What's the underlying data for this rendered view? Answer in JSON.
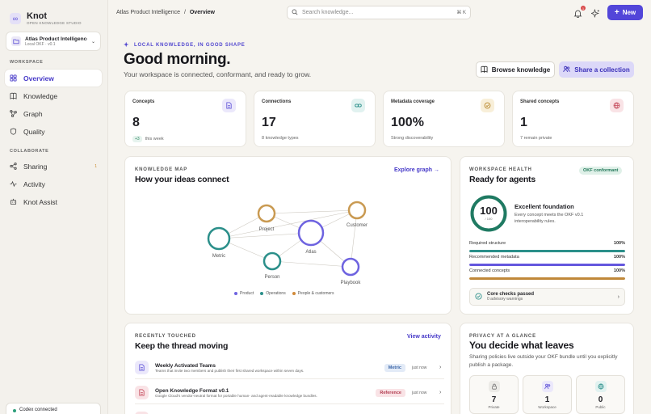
{
  "app": {
    "name": "Knot",
    "tagline": "OPEN KNOWLEDGE STUDIO"
  },
  "workspace": {
    "name": "Atlas Product Intelligence",
    "meta": "Local OKF · v0.1"
  },
  "sidebar": {
    "workspace_label": "WORKSPACE",
    "collaborate_label": "COLLABORATE",
    "items": [
      {
        "label": "Overview",
        "icon": "grid-icon"
      },
      {
        "label": "Knowledge",
        "icon": "book-icon"
      },
      {
        "label": "Graph",
        "icon": "graph-icon"
      },
      {
        "label": "Quality",
        "icon": "shield-icon"
      },
      {
        "label": "Sharing",
        "icon": "share-icon",
        "badge": "1"
      },
      {
        "label": "Activity",
        "icon": "pulse-icon"
      },
      {
        "label": "Knot Assist",
        "icon": "bot-icon"
      }
    ],
    "status": "Codex connected"
  },
  "topbar": {
    "breadcrumb_root": "Atlas Product Intelligence",
    "breadcrumb_sep": "/",
    "breadcrumb_current": "Overview",
    "search_placeholder": "Search knowledge...",
    "search_shortcut": "⌘ K",
    "notification_count": "1",
    "new_label": "New"
  },
  "hero": {
    "eyebrow": "LOCAL KNOWLEDGE, IN GOOD SHAPE",
    "title": "Good morning.",
    "subtitle": "Your workspace is connected, conformant, and ready to grow.",
    "browse_label": "Browse knowledge",
    "share_label": "Share a collection"
  },
  "stats": [
    {
      "label": "Concepts",
      "value": "8",
      "delta": "+3",
      "foot": "this week",
      "color": "#5b4fd6",
      "bg": "#ebe8fb"
    },
    {
      "label": "Connections",
      "value": "17",
      "foot": "8 knowledge types",
      "color": "#2b8f8a",
      "bg": "#e1f2f0"
    },
    {
      "label": "Metadata coverage",
      "value": "100%",
      "foot": "Strong discoverability",
      "color": "#b7862a",
      "bg": "#f8efd9"
    },
    {
      "label": "Shared concepts",
      "value": "1",
      "foot": "7 remain private",
      "color": "#c4485a",
      "bg": "#f9e3e6"
    }
  ],
  "knowledge_map": {
    "eyebrow": "KNOWLEDGE MAP",
    "title": "How your ideas connect",
    "link": "Explore graph",
    "nodes": [
      {
        "label": "Metric",
        "color": "#2b8f8a"
      },
      {
        "label": "Project",
        "color": "#c99a52"
      },
      {
        "label": "Atlas",
        "color": "#6e63e0"
      },
      {
        "label": "Customer",
        "color": "#c99a52"
      },
      {
        "label": "Person",
        "color": "#2b8f8a"
      },
      {
        "label": "Playbook",
        "color": "#6e63e0"
      }
    ],
    "legend": [
      {
        "label": "Product",
        "color": "#6e63e0"
      },
      {
        "label": "Operations",
        "color": "#2b8f8a"
      },
      {
        "label": "People & customers",
        "color": "#d08a3a"
      }
    ]
  },
  "health": {
    "eyebrow": "WORKSPACE HEALTH",
    "title": "Ready for agents",
    "badge": "OKF conformant",
    "score": "100",
    "score_sub": "/ 100",
    "score_fraction": 1.0,
    "summary_title": "Excellent foundation",
    "summary_text": "Every concept meets the OKF v0.1 interoperability rules.",
    "bars": [
      {
        "label": "Required structure",
        "value": "100%",
        "fraction": 1.0,
        "color": "#2b8f8a"
      },
      {
        "label": "Recommended metadata",
        "value": "100%",
        "fraction": 1.0,
        "color": "#6457de"
      },
      {
        "label": "Connected concepts",
        "value": "100%",
        "fraction": 1.0,
        "color": "#c0883a"
      }
    ],
    "core_title": "Core checks passed",
    "core_sub": "0 advisory warnings"
  },
  "recent": {
    "eyebrow": "RECENTLY TOUCHED",
    "title": "Keep the thread moving",
    "link": "View activity",
    "rows": [
      {
        "title": "Weekly Activated Teams",
        "desc": "Teams that invite two members and publish their first shared workspace within seven days.",
        "tag": "Metric",
        "time": "just now",
        "tag_color": "#3c66a8",
        "tag_bg": "#e3ebf7",
        "icon_color": "#5b4fd6",
        "icon_bg": "#ebe8fb"
      },
      {
        "title": "Open Knowledge Format v0.1",
        "desc": "Google Cloud's vendor-neutral format for portable human- and agent-readable knowledge bundles.",
        "tag": "Reference",
        "time": "just now",
        "tag_color": "#b23c50",
        "tag_bg": "#f9e3e6",
        "icon_color": "#c4485a",
        "icon_bg": "#f9e3e6"
      }
    ]
  },
  "privacy": {
    "eyebrow": "PRIVACY AT A GLANCE",
    "title": "You decide what leaves",
    "text": "Sharing policies live outside your OKF bundle until you explicitly publish a package.",
    "tiles": [
      {
        "value": "7",
        "label": "Private",
        "icon": "lock-icon",
        "color": "#777",
        "bg": "#ecebe7"
      },
      {
        "value": "1",
        "label": "Workspace",
        "icon": "people-icon",
        "color": "#5b4fd6",
        "bg": "#ebe8fb"
      },
      {
        "value": "0",
        "label": "Public",
        "icon": "globe-icon",
        "color": "#2b8f8a",
        "bg": "#e1f2f0"
      }
    ]
  }
}
